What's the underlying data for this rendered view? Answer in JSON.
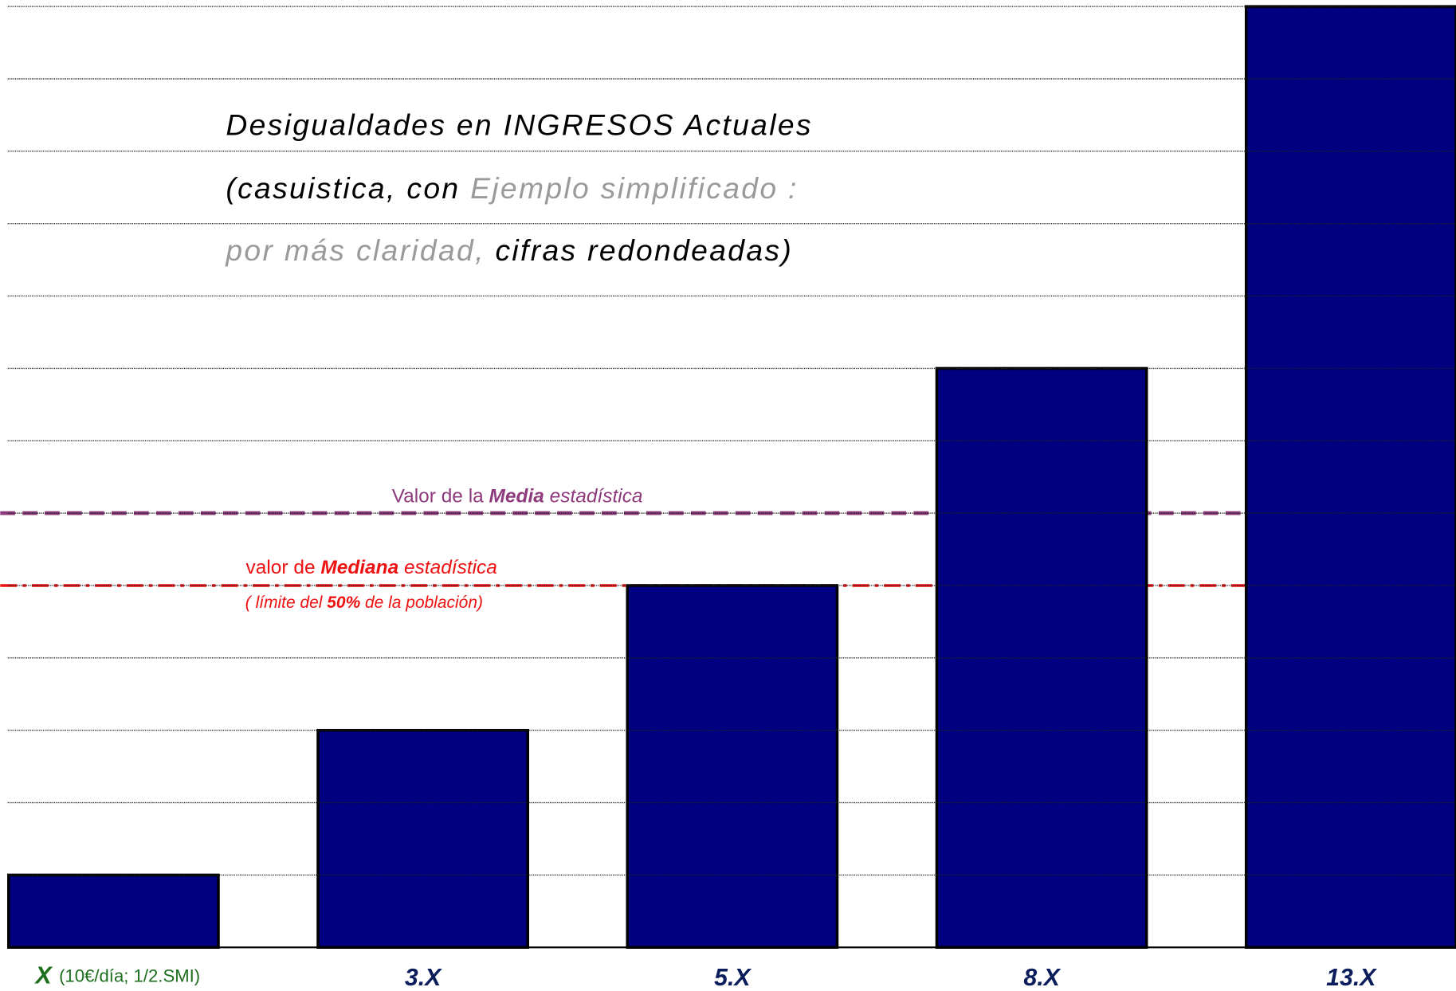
{
  "chart_data": {
    "type": "bar",
    "title_lines": [
      [
        "Desigualdades en INGRESOS Actuales"
      ],
      [
        "(casuistica, con ",
        "Ejemplo simplificado :"
      ],
      [
        "por más claridad, ",
        "cifras redondeadas)"
      ]
    ],
    "categories": [
      "X",
      "3.X",
      "5.X",
      "8.X",
      "13.X"
    ],
    "category_note": "(10€/día; 1/2.SMI)",
    "values": [
      1,
      3,
      5,
      8,
      13
    ],
    "color": "#000080",
    "ylim": [
      0,
      13
    ],
    "yticks": [
      0,
      1,
      2,
      3,
      4,
      5,
      6,
      7,
      8,
      9,
      10,
      11,
      12,
      13
    ],
    "grid": true,
    "mean": {
      "value": 6,
      "color": "#8e3a7c",
      "label": [
        "Valor de la ",
        "Media",
        " estadística"
      ]
    },
    "median": {
      "value": 5,
      "color": "#ee1111",
      "label": [
        "valor de ",
        "Mediana",
        " estadística"
      ],
      "note": [
        "( límite del ",
        "50%",
        " de la población)"
      ]
    }
  }
}
